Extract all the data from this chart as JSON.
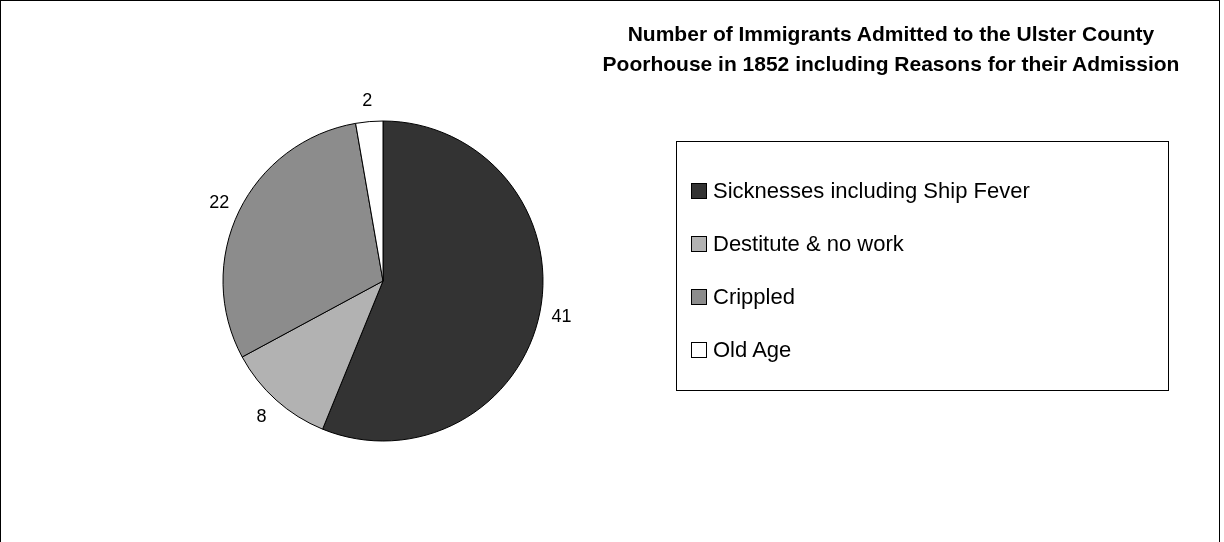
{
  "chart_data": {
    "type": "pie",
    "title": "Number of Immigrants Admitted to the Ulster County Poorhouse in 1852 including Reasons for their Admission",
    "categories": [
      "Sicknesses including Ship Fever",
      "Destitute & no work",
      "Crippled",
      "Old Age"
    ],
    "values": [
      41,
      8,
      22,
      2
    ],
    "colors": [
      "#333333",
      "#b2b2b2",
      "#8c8c8c",
      "#ffffff"
    ],
    "data_labels": true,
    "legend": "right"
  }
}
